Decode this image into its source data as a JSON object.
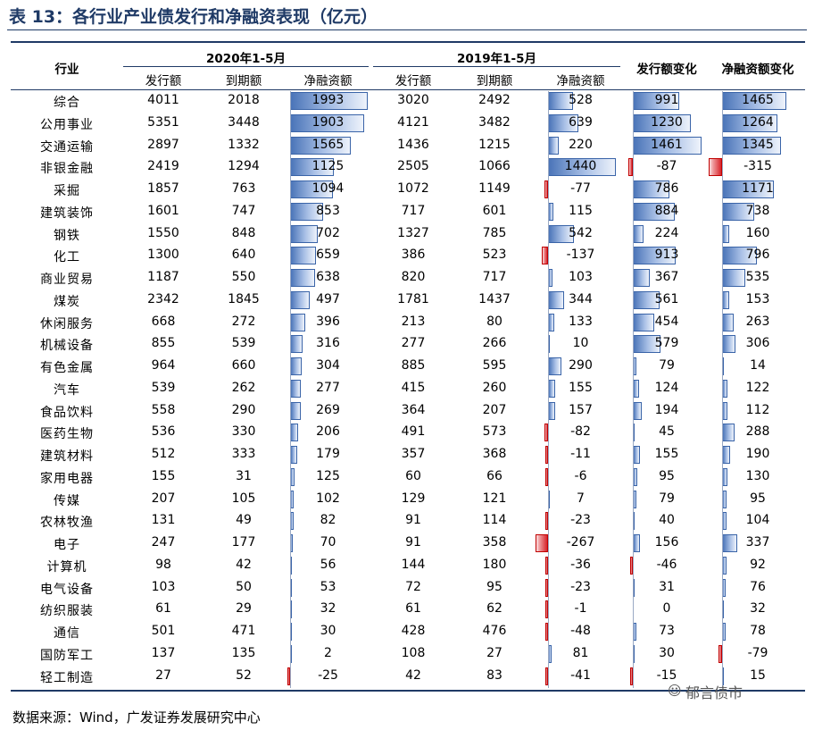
{
  "title": "表 13：各行业产业债发行和净融资表现（亿元）",
  "header": {
    "industry": "行业",
    "group_2020": "2020年1-5月",
    "group_2019": "2019年1-5月",
    "issue_change": "发行额变化",
    "net_change": "净融资额变化",
    "sub": {
      "issue": "发行额",
      "maturity": "到期额",
      "net": "净融资额"
    }
  },
  "rows": [
    {
      "name": "综合",
      "i20": "4011",
      "m20": "2018",
      "n20": "1993",
      "i19": "3020",
      "m19": "2492",
      "n19": "528",
      "di": "991",
      "dn": "1465"
    },
    {
      "name": "公用事业",
      "i20": "5351",
      "m20": "3448",
      "n20": "1903",
      "i19": "4121",
      "m19": "3482",
      "n19": "639",
      "di": "1230",
      "dn": "1264"
    },
    {
      "name": "交通运输",
      "i20": "2897",
      "m20": "1332",
      "n20": "1565",
      "i19": "1436",
      "m19": "1215",
      "n19": "220",
      "di": "1461",
      "dn": "1345"
    },
    {
      "name": "非银金融",
      "i20": "2419",
      "m20": "1294",
      "n20": "1125",
      "i19": "2505",
      "m19": "1066",
      "n19": "1440",
      "di": "-87",
      "dn": "-315"
    },
    {
      "name": "采掘",
      "i20": "1857",
      "m20": "763",
      "n20": "1094",
      "i19": "1072",
      "m19": "1149",
      "n19": "-77",
      "di": "786",
      "dn": "1171"
    },
    {
      "name": "建筑装饰",
      "i20": "1601",
      "m20": "747",
      "n20": "853",
      "i19": "717",
      "m19": "601",
      "n19": "115",
      "di": "884",
      "dn": "738"
    },
    {
      "name": "钢铁",
      "i20": "1550",
      "m20": "848",
      "n20": "702",
      "i19": "1327",
      "m19": "785",
      "n19": "542",
      "di": "224",
      "dn": "160"
    },
    {
      "name": "化工",
      "i20": "1300",
      "m20": "640",
      "n20": "659",
      "i19": "386",
      "m19": "523",
      "n19": "-137",
      "di": "913",
      "dn": "796"
    },
    {
      "name": "商业贸易",
      "i20": "1187",
      "m20": "550",
      "n20": "638",
      "i19": "820",
      "m19": "717",
      "n19": "103",
      "di": "367",
      "dn": "535"
    },
    {
      "name": "煤炭",
      "i20": "2342",
      "m20": "1845",
      "n20": "497",
      "i19": "1781",
      "m19": "1437",
      "n19": "344",
      "di": "561",
      "dn": "153"
    },
    {
      "name": "休闲服务",
      "i20": "668",
      "m20": "272",
      "n20": "396",
      "i19": "213",
      "m19": "80",
      "n19": "133",
      "di": "454",
      "dn": "263"
    },
    {
      "name": "机械设备",
      "i20": "855",
      "m20": "539",
      "n20": "316",
      "i19": "277",
      "m19": "266",
      "n19": "10",
      "di": "579",
      "dn": "306"
    },
    {
      "name": "有色金属",
      "i20": "964",
      "m20": "660",
      "n20": "304",
      "i19": "885",
      "m19": "595",
      "n19": "290",
      "di": "79",
      "dn": "14"
    },
    {
      "name": "汽车",
      "i20": "539",
      "m20": "262",
      "n20": "277",
      "i19": "415",
      "m19": "260",
      "n19": "155",
      "di": "124",
      "dn": "122"
    },
    {
      "name": "食品饮料",
      "i20": "558",
      "m20": "290",
      "n20": "269",
      "i19": "364",
      "m19": "207",
      "n19": "157",
      "di": "194",
      "dn": "112"
    },
    {
      "name": "医药生物",
      "i20": "536",
      "m20": "330",
      "n20": "206",
      "i19": "491",
      "m19": "573",
      "n19": "-82",
      "di": "45",
      "dn": "288"
    },
    {
      "name": "建筑材料",
      "i20": "512",
      "m20": "333",
      "n20": "179",
      "i19": "357",
      "m19": "368",
      "n19": "-11",
      "di": "155",
      "dn": "190"
    },
    {
      "name": "家用电器",
      "i20": "155",
      "m20": "31",
      "n20": "125",
      "i19": "60",
      "m19": "66",
      "n19": "-6",
      "di": "95",
      "dn": "130"
    },
    {
      "name": "传媒",
      "i20": "207",
      "m20": "105",
      "n20": "102",
      "i19": "129",
      "m19": "121",
      "n19": "7",
      "di": "79",
      "dn": "95"
    },
    {
      "name": "农林牧渔",
      "i20": "131",
      "m20": "49",
      "n20": "82",
      "i19": "91",
      "m19": "114",
      "n19": "-23",
      "di": "40",
      "dn": "104"
    },
    {
      "name": "电子",
      "i20": "247",
      "m20": "177",
      "n20": "70",
      "i19": "91",
      "m19": "358",
      "n19": "-267",
      "di": "156",
      "dn": "337"
    },
    {
      "name": "计算机",
      "i20": "98",
      "m20": "42",
      "n20": "56",
      "i19": "144",
      "m19": "180",
      "n19": "-36",
      "di": "-46",
      "dn": "92"
    },
    {
      "name": "电气设备",
      "i20": "103",
      "m20": "50",
      "n20": "53",
      "i19": "72",
      "m19": "95",
      "n19": "-23",
      "di": "31",
      "dn": "76"
    },
    {
      "name": "纺织服装",
      "i20": "61",
      "m20": "29",
      "n20": "32",
      "i19": "61",
      "m19": "62",
      "n19": "-1",
      "di": "0",
      "dn": "32"
    },
    {
      "name": "通信",
      "i20": "501",
      "m20": "471",
      "n20": "30",
      "i19": "428",
      "m19": "476",
      "n19": "-48",
      "di": "73",
      "dn": "78"
    },
    {
      "name": "国防军工",
      "i20": "137",
      "m20": "135",
      "n20": "2",
      "i19": "108",
      "m19": "27",
      "n19": "81",
      "di": "30",
      "dn": "-79"
    },
    {
      "name": "轻工制造",
      "i20": "27",
      "m20": "52",
      "n20": "-25",
      "i19": "42",
      "m19": "83",
      "n19": "-41",
      "di": "-15",
      "dn": "15"
    }
  ],
  "watermark": "郁言债市",
  "watermark_icon": "wechat-icon",
  "source": "数据来源：Wind，广发证券发展研究中心",
  "colors": {
    "positive": "#4a74b8",
    "negative": "#d8232a",
    "rule": "#1f3a66"
  }
}
